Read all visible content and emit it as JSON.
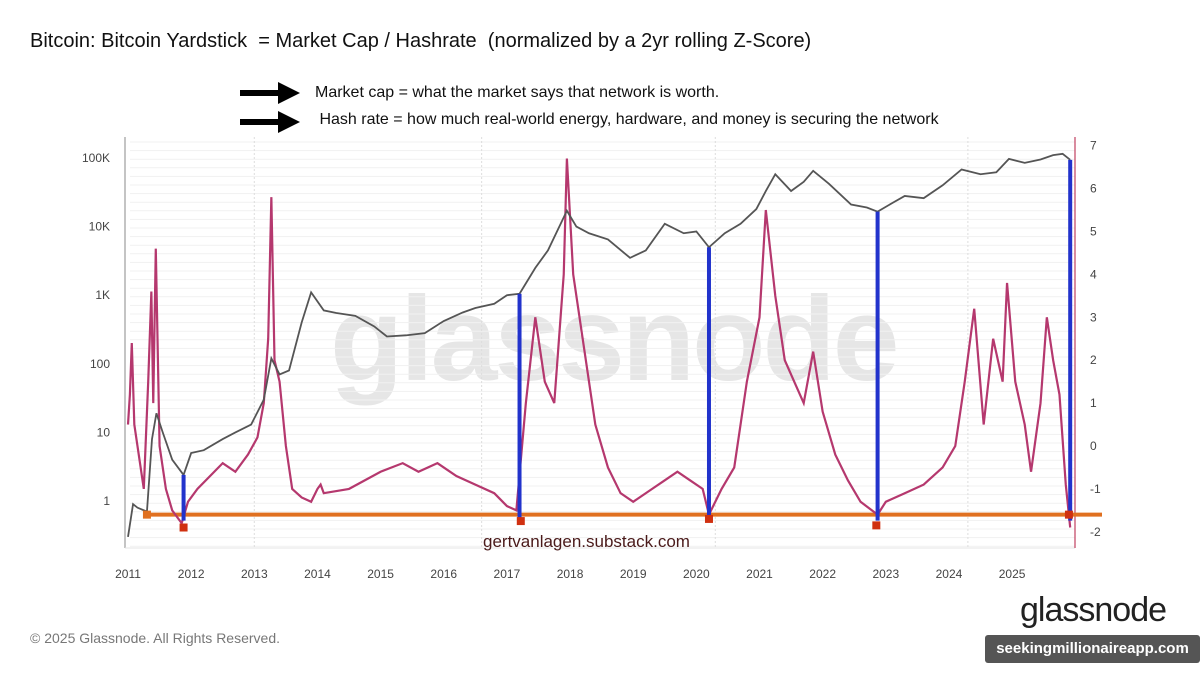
{
  "title": "Bitcoin: Bitcoin Yardstick  = Market Cap / Hashrate  (normalized by a 2yr rolling Z-Score)",
  "notes": [
    "Market cap = what the market says that network is worth.",
    " Hash rate = how much real-world energy, hardware, and money is securing the network"
  ],
  "credit": "gertvanlagen.substack.com",
  "watermark": "glassnode",
  "footer": {
    "copyright": "© 2025 Glassnode. All Rights Reserved.",
    "logo": "glassnode",
    "overlay": "seekingmillionaireapp.com"
  },
  "chart_data": {
    "type": "line",
    "title": "Bitcoin: Bitcoin Yardstick  = Market Cap / Hashrate  (normalized by a 2yr rolling Z-Score)",
    "x_ticks": [
      "2011",
      "2012",
      "2013",
      "2014",
      "2015",
      "2016",
      "2017",
      "2018",
      "2019",
      "2020",
      "2021",
      "2022",
      "2023",
      "2024",
      "2025"
    ],
    "y_left": {
      "scale": "log",
      "ticks": [
        "1",
        "10",
        "100",
        "1K",
        "10K",
        "100K"
      ],
      "tick_values": [
        1,
        10,
        100,
        1000,
        10000,
        100000
      ]
    },
    "y_right": {
      "scale": "linear",
      "ticks": [
        "-2",
        "-1",
        "0",
        "1",
        "2",
        "3",
        "4",
        "5",
        "6",
        "7"
      ],
      "range": [
        -2.4,
        7.2
      ]
    },
    "grid": true,
    "colors": {
      "price": "#555555",
      "zscore": "#b5386e",
      "threshold": "#e07020",
      "markers": "#2233cc",
      "bottom_marks": "#d03010",
      "right_border": "#c04060"
    },
    "series": [
      {
        "axis": "left",
        "x": [
          2011.0,
          2011.08,
          2011.15,
          2011.3,
          2011.38,
          2011.45,
          2011.55,
          2011.7,
          2011.88,
          2012.0,
          2012.2,
          2012.5,
          2012.7,
          2012.95,
          2013.15,
          2013.27,
          2013.4,
          2013.55,
          2013.75,
          2013.9,
          2014.1,
          2014.3,
          2014.6,
          2014.9,
          2015.1,
          2015.4,
          2015.7,
          2016.0,
          2016.3,
          2016.5,
          2016.8,
          2017.0,
          2017.2,
          2017.45,
          2017.65,
          2017.95,
          2018.1,
          2018.3,
          2018.6,
          2018.95,
          2019.2,
          2019.5,
          2019.8,
          2020.0,
          2020.2,
          2020.45,
          2020.7,
          2020.95,
          2021.1,
          2021.25,
          2021.5,
          2021.7,
          2021.85,
          2022.1,
          2022.45,
          2022.7,
          2022.87,
          2023.1,
          2023.3,
          2023.6,
          2023.9,
          2024.2,
          2024.5,
          2024.75,
          2024.95,
          2025.2,
          2025.45,
          2025.65,
          2025.8,
          2025.92
        ],
        "y": [
          0.3,
          0.9,
          0.8,
          0.7,
          8,
          19,
          10,
          4,
          2.4,
          5,
          5.5,
          8,
          10,
          13,
          30,
          120,
          70,
          80,
          400,
          1100,
          600,
          550,
          500,
          350,
          250,
          260,
          280,
          420,
          560,
          650,
          750,
          1000,
          1050,
          2500,
          4500,
          17000,
          10000,
          8000,
          6500,
          3500,
          4500,
          11000,
          8000,
          8500,
          5000,
          8000,
          11000,
          18000,
          33000,
          58000,
          33000,
          45000,
          65000,
          42000,
          21000,
          19000,
          16500,
          22000,
          28000,
          26000,
          40000,
          68000,
          58000,
          62000,
          97000,
          85000,
          95000,
          110000,
          115000,
          94000
        ]
      },
      {
        "axis": "right",
        "x": [
          2011.0,
          2011.03,
          2011.06,
          2011.1,
          2011.15,
          2011.25,
          2011.32,
          2011.37,
          2011.4,
          2011.44,
          2011.5,
          2011.6,
          2011.7,
          2011.85,
          2011.95,
          2012.1,
          2012.3,
          2012.5,
          2012.7,
          2012.9,
          2013.05,
          2013.15,
          2013.22,
          2013.27,
          2013.32,
          2013.4,
          2013.5,
          2013.6,
          2013.75,
          2013.9,
          2014.0,
          2014.05,
          2014.1,
          2014.5,
          2015.0,
          2015.35,
          2015.6,
          2015.9,
          2016.2,
          2016.5,
          2016.8,
          2017.0,
          2017.15,
          2017.3,
          2017.45,
          2017.6,
          2017.75,
          2017.9,
          2017.95,
          2018.05,
          2018.2,
          2018.4,
          2018.6,
          2018.8,
          2019.0,
          2019.3,
          2019.5,
          2019.7,
          2019.9,
          2020.1,
          2020.2,
          2020.4,
          2020.6,
          2020.8,
          2021.0,
          2021.1,
          2021.25,
          2021.4,
          2021.55,
          2021.7,
          2021.85,
          2022.0,
          2022.2,
          2022.4,
          2022.6,
          2022.87,
          2023.0,
          2023.3,
          2023.6,
          2023.9,
          2024.1,
          2024.25,
          2024.4,
          2024.55,
          2024.7,
          2024.85,
          2024.92,
          2025.05,
          2025.2,
          2025.3,
          2025.45,
          2025.55,
          2025.65,
          2025.75,
          2025.85,
          2025.92
        ],
        "y": [
          0.5,
          1.2,
          2.4,
          0.5,
          0.0,
          -1.0,
          1.5,
          3.6,
          1.0,
          4.6,
          0.0,
          -1.0,
          -1.5,
          -1.8,
          -1.3,
          -1.0,
          -0.7,
          -0.4,
          -0.6,
          -0.2,
          0.2,
          1.0,
          2.5,
          5.8,
          2.0,
          1.5,
          0.0,
          -1.0,
          -1.2,
          -1.3,
          -1.0,
          -0.9,
          -1.1,
          -1.0,
          -0.6,
          -0.4,
          -0.6,
          -0.4,
          -0.7,
          -0.9,
          -1.1,
          -1.4,
          -1.5,
          1.0,
          3.0,
          1.5,
          1.0,
          4.0,
          6.7,
          4.0,
          2.5,
          0.5,
          -0.5,
          -1.1,
          -1.3,
          -1.0,
          -0.8,
          -0.6,
          -0.8,
          -1.0,
          -1.6,
          -1.0,
          -0.5,
          1.5,
          3.0,
          5.5,
          3.5,
          2.0,
          1.5,
          1.0,
          2.2,
          0.8,
          -0.2,
          -0.8,
          -1.3,
          -1.6,
          -1.3,
          -1.1,
          -0.9,
          -0.5,
          0.0,
          1.5,
          3.2,
          0.5,
          2.5,
          1.5,
          3.8,
          1.5,
          0.5,
          -0.6,
          1.0,
          3.0,
          2.0,
          1.2,
          -0.9,
          -1.9
        ]
      }
    ],
    "threshold_z": -1.6,
    "vertical_markers_x": [
      2011.88,
      2017.2,
      2020.2,
      2022.87,
      2025.92
    ],
    "bottom_marks": [
      {
        "x": 2011.88,
        "z": -1.9
      },
      {
        "x": 2017.22,
        "z": -1.75
      },
      {
        "x": 2020.2,
        "z": -1.7
      },
      {
        "x": 2022.85,
        "z": -1.85
      },
      {
        "x": 2025.9,
        "z": -1.6
      }
    ],
    "start_mark": {
      "x": 2011.3,
      "z": -1.6
    }
  }
}
